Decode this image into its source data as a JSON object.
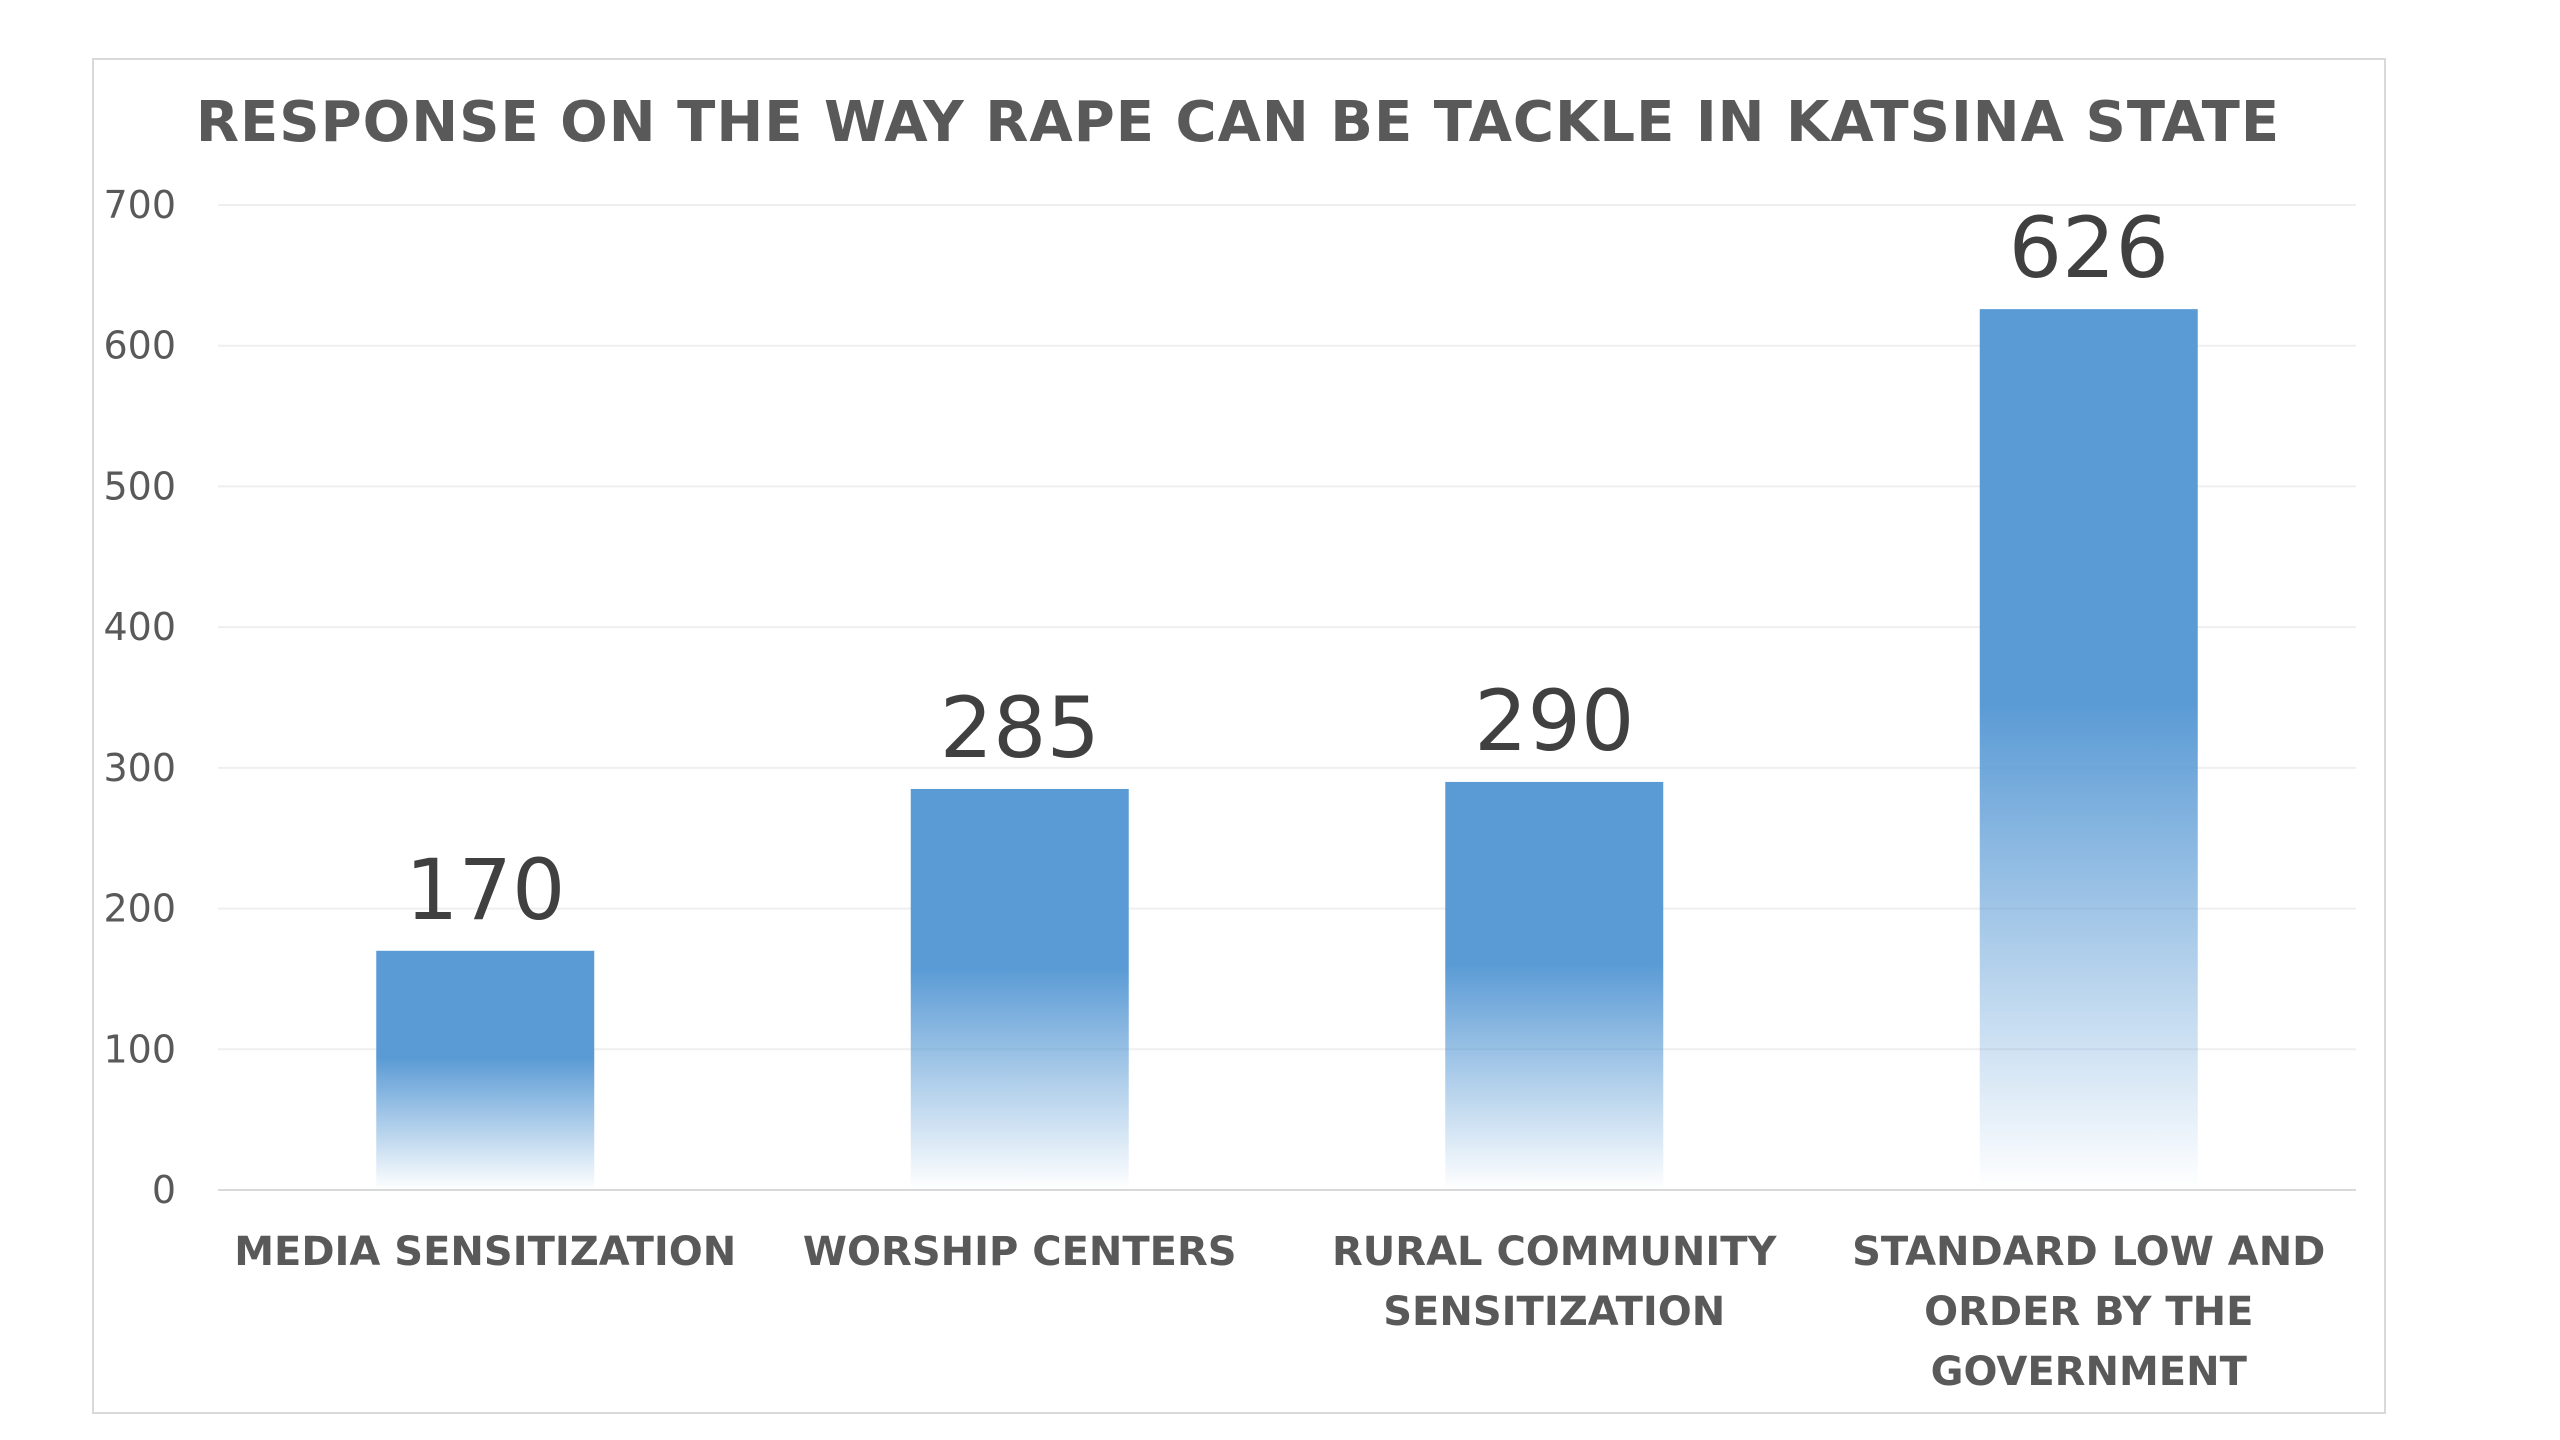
{
  "chart_data": {
    "type": "bar",
    "title": "RESPONSE ON THE WAY RAPE CAN BE TACKLE IN KATSINA STATE",
    "xlabel": "",
    "ylabel": "",
    "categories": [
      [
        "MEDIA SENSITIZATION"
      ],
      [
        "WORSHIP CENTERS"
      ],
      [
        "RURAL COMMUNITY",
        "SENSITIZATION"
      ],
      [
        "STANDARD LOW AND",
        "ORDER BY THE",
        "GOVERNMENT"
      ]
    ],
    "values": [
      170,
      285,
      290,
      626
    ],
    "ylim": [
      0,
      700
    ],
    "yticks": [
      0,
      100,
      200,
      300,
      400,
      500,
      600,
      700
    ],
    "grid": true,
    "legend": "none",
    "bar_color": "#5b9bd5"
  }
}
